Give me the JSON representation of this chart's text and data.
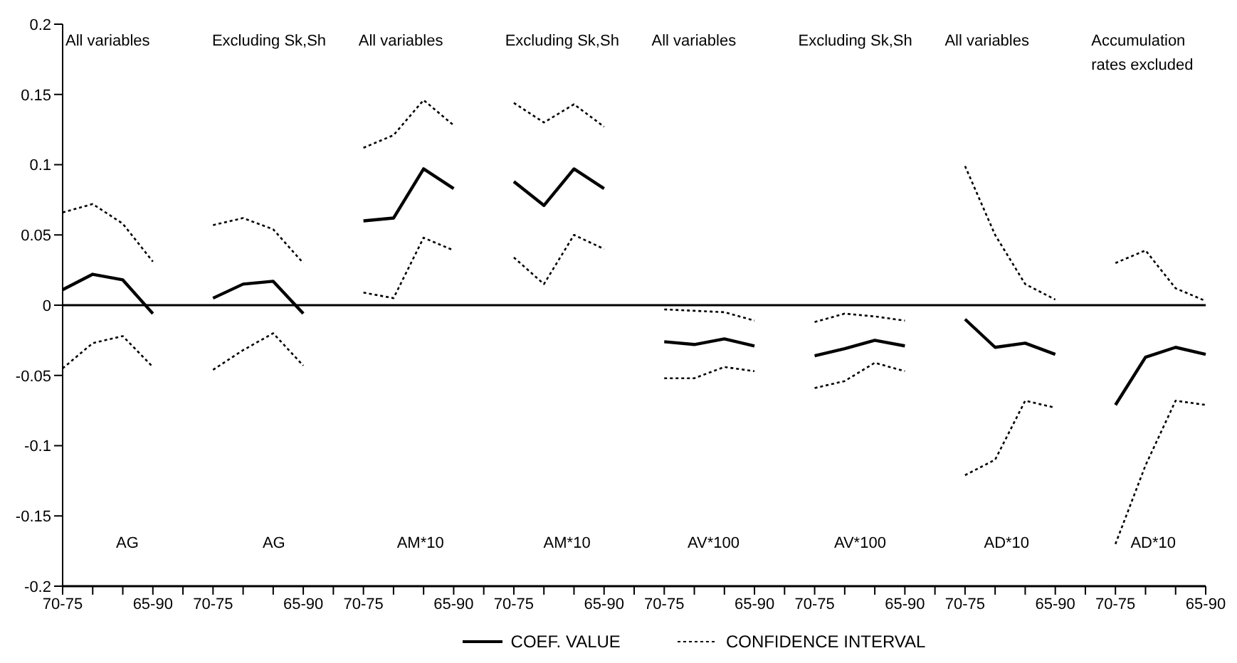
{
  "chart_data": {
    "type": "line",
    "categories": [
      "70-75",
      null,
      null,
      "65-90",
      null,
      "70-75",
      null,
      null,
      "65-90",
      null,
      "70-75",
      null,
      null,
      "65-90",
      null,
      "70-75",
      null,
      null,
      "65-90",
      null,
      "70-75",
      null,
      null,
      "65-90",
      null,
      "70-75",
      null,
      null,
      "65-90",
      null,
      "70-75",
      null,
      null,
      "65-90",
      null,
      "70-75",
      null,
      null,
      "65-90"
    ],
    "series": [
      {
        "name": "COEF. VALUE",
        "color": "#000000",
        "line_style": "solid",
        "values": [
          0.011,
          0.022,
          0.018,
          -0.006,
          null,
          0.005,
          0.015,
          0.017,
          -0.006,
          null,
          0.06,
          0.062,
          0.097,
          0.083,
          null,
          0.088,
          0.071,
          0.097,
          0.083,
          null,
          -0.026,
          -0.028,
          -0.024,
          -0.029,
          null,
          -0.036,
          -0.031,
          -0.025,
          -0.029,
          null,
          -0.01,
          -0.03,
          -0.027,
          -0.035,
          null,
          -0.071,
          -0.037,
          -0.03,
          -0.035
        ]
      },
      {
        "name": "CONFIDENCE INTERVAL",
        "color": "#000000",
        "line_style": "dotted",
        "values": [
          0.066,
          0.072,
          0.058,
          0.031,
          null,
          0.057,
          0.062,
          0.054,
          0.03,
          null,
          0.112,
          0.121,
          0.146,
          0.128,
          null,
          0.144,
          0.13,
          0.143,
          0.127,
          null,
          -0.003,
          -0.004,
          -0.005,
          -0.011,
          null,
          -0.012,
          -0.006,
          -0.008,
          -0.011,
          null,
          0.099,
          0.05,
          0.015,
          0.004,
          null,
          0.03,
          0.039,
          0.012,
          0.003
        ]
      },
      {
        "color": "#000000",
        "line_style": "dotted",
        "values": [
          -0.045,
          -0.027,
          -0.022,
          -0.044,
          null,
          -0.046,
          -0.032,
          -0.02,
          -0.043,
          null,
          0.009,
          0.005,
          0.048,
          0.039,
          null,
          0.034,
          0.015,
          0.05,
          0.04,
          null,
          -0.052,
          -0.052,
          -0.044,
          -0.047,
          null,
          -0.059,
          -0.054,
          -0.041,
          -0.047,
          null,
          -0.121,
          -0.11,
          -0.068,
          -0.073,
          null,
          -0.17,
          -0.114,
          -0.068,
          -0.071
        ]
      }
    ],
    "ylim": [
      -0.2,
      0.2
    ],
    "yticks": [
      -0.2,
      -0.15,
      -0.1,
      -0.05,
      0,
      0.05,
      0.1,
      0.15,
      0.2
    ],
    "ref_lines": [
      {
        "axis": "y",
        "value": 0,
        "color": "#000000"
      }
    ],
    "annotations": [
      "All variables",
      "Excluding Sk,Sh",
      "All variables",
      "Excluding Sk,Sh",
      "All variables",
      "Excluding Sk,Sh",
      "All variables",
      "Accumulation rates excluded",
      "AG",
      "AG",
      "AM*10",
      "AM*10",
      "AV*100",
      "AV*100",
      "AD*10",
      "AD*10"
    ],
    "legend": "bottom",
    "marker": "none",
    "grid": false
  }
}
